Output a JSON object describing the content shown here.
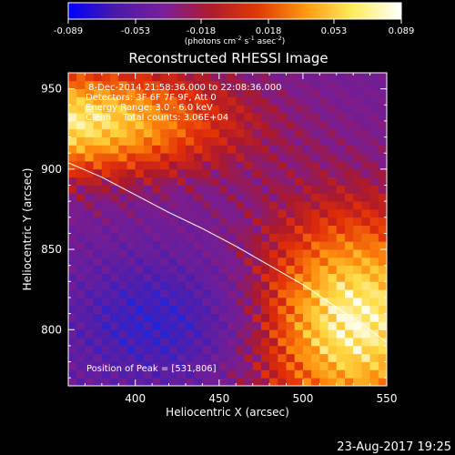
{
  "colorbar": {
    "min": -0.089,
    "max": 0.089,
    "ticks": [
      "-0.089",
      "-0.053",
      "-0.018",
      "0.018",
      "0.053",
      "0.089"
    ],
    "tick_values": [
      -0.089,
      -0.053,
      -0.018,
      0.018,
      0.053,
      0.089
    ],
    "units_line": "(photons cm",
    "units_exp1": "-2",
    "units_mid1": " s",
    "units_exp2": "-1",
    "units_mid2": " asec",
    "units_exp3": "-2",
    "units_close": ")",
    "stops": [
      "#0000ff",
      "#4a1aa8",
      "#7a1f9c",
      "#b01b2c",
      "#e03a05",
      "#ff9a10",
      "#ffee60",
      "#ffffff"
    ]
  },
  "chart_data": {
    "type": "heatmap",
    "title": "Reconstructed RHESSI Image",
    "xlabel": "Heliocentric X (arcsec)",
    "ylabel": "Heliocentric Y (arcsec)",
    "xlim": [
      360,
      550
    ],
    "ylim": [
      765,
      960
    ],
    "x_ticks": [
      400,
      450,
      500,
      550
    ],
    "y_ticks": [
      800,
      850,
      900,
      950
    ],
    "annotations": {
      "time": " 8-Dec-2014 21:58:36.000 to 22:08:36.000",
      "detectors": "Detectors: 3F 6F 7F 9F, Att 0",
      "energy": "Energy Range: 3.0 - 6.0 keV",
      "clean": "Clean    Total counts: 3.06E+04",
      "peak": "Position of Peak = [531,806]"
    },
    "peak": {
      "x": 531,
      "y": 806
    },
    "limb_curve": [
      [
        360,
        904
      ],
      [
        380,
        895
      ],
      [
        400,
        884
      ],
      [
        420,
        873
      ],
      [
        440,
        863
      ],
      [
        460,
        852
      ],
      [
        480,
        840
      ],
      [
        500,
        828
      ],
      [
        520,
        814
      ],
      [
        540,
        800
      ],
      [
        550,
        792
      ]
    ]
  },
  "footer": {
    "date": "23-Aug-2017 19:25"
  }
}
